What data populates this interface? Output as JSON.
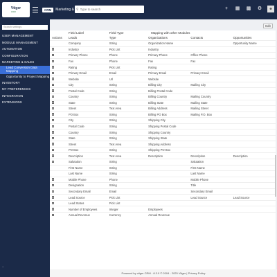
{
  "header": {
    "logo_text": "Vtiger",
    "logo_sub": "CRM",
    "crumb_tag": "CRM",
    "breadcrumb": "Marketing & Sales > Leads",
    "search_placeholder": "Type to search",
    "icons": [
      "add-icon",
      "calendar-icon",
      "chart-icon",
      "settings-icon",
      "user-avatar"
    ]
  },
  "sidebar": {
    "search_placeholder": "Search settings",
    "items": [
      {
        "label": "USER MANAGEMENT",
        "kind": "section"
      },
      {
        "label": "MODULE MANAGEMENT",
        "kind": "section"
      },
      {
        "label": "AUTOMATION",
        "kind": "section"
      },
      {
        "label": "CONFIGURATION",
        "kind": "section"
      },
      {
        "label": "MARKETING & SALES",
        "kind": "section"
      },
      {
        "label": "Lead Conversion Data Mapping",
        "kind": "sub-active"
      },
      {
        "label": "Opportunity to Project Mapping",
        "kind": "sub"
      },
      {
        "label": "INVENTORY",
        "kind": "section"
      },
      {
        "label": "MY PREFERENCES",
        "kind": "section"
      },
      {
        "label": "INTEGRATION",
        "kind": "section"
      },
      {
        "label": "EXTENSIONS",
        "kind": "section"
      }
    ],
    "bottom_label": "..."
  },
  "main": {
    "edit_label": "Edit",
    "group_headers": {
      "field_label": "Field Label",
      "field_type": "Field Type",
      "mapping": "Mapping with other Modules"
    },
    "columns": [
      "Actions",
      "Leads",
      "Type",
      "Organizations",
      "Contacts",
      "Opportunities"
    ],
    "rows": [
      {
        "trash": false,
        "lead": "Company",
        "type": "String",
        "org": "Organization Name",
        "contact": "",
        "opp": "Opportunity Name"
      },
      {
        "trash": true,
        "lead": "Industry",
        "type": "Pick List",
        "org": "Industry",
        "contact": "",
        "opp": ""
      },
      {
        "trash": true,
        "lead": "Primary Phone",
        "type": "Phone",
        "org": "Primary Phone",
        "contact": "Office Phone",
        "opp": ""
      },
      {
        "trash": true,
        "lead": "Fax",
        "type": "Phone",
        "org": "Fax",
        "contact": "Fax",
        "opp": ""
      },
      {
        "trash": true,
        "lead": "Rating",
        "type": "Pick List",
        "org": "Rating",
        "contact": "",
        "opp": ""
      },
      {
        "trash": true,
        "lead": "Primary Email",
        "type": "Email",
        "org": "Primary Email",
        "contact": "Primary Email",
        "opp": ""
      },
      {
        "trash": true,
        "lead": "Website",
        "type": "Url",
        "org": "Website",
        "contact": "",
        "opp": ""
      },
      {
        "trash": true,
        "lead": "City",
        "type": "String",
        "org": "Billing City",
        "contact": "Mailing City",
        "opp": ""
      },
      {
        "trash": true,
        "lead": "Postal Code",
        "type": "String",
        "org": "Billing Postal Code",
        "contact": "",
        "opp": ""
      },
      {
        "trash": true,
        "lead": "Country",
        "type": "String",
        "org": "Billing Country",
        "contact": "Mailing Country",
        "opp": ""
      },
      {
        "trash": true,
        "lead": "State",
        "type": "String",
        "org": "Billing State",
        "contact": "Mailing State",
        "opp": ""
      },
      {
        "trash": true,
        "lead": "Street",
        "type": "Text Area",
        "org": "Billing Address",
        "contact": "Mailing Street",
        "opp": ""
      },
      {
        "trash": true,
        "lead": "PO Box",
        "type": "String",
        "org": "Billing PO Box",
        "contact": "Mailing P.O. Box",
        "opp": ""
      },
      {
        "trash": true,
        "lead": "City",
        "type": "String",
        "org": "Shipping City",
        "contact": "",
        "opp": ""
      },
      {
        "trash": true,
        "lead": "Postal Code",
        "type": "String",
        "org": "Shipping Postal Code",
        "contact": "",
        "opp": ""
      },
      {
        "trash": true,
        "lead": "Country",
        "type": "String",
        "org": "Shipping Country",
        "contact": "",
        "opp": ""
      },
      {
        "trash": true,
        "lead": "State",
        "type": "String",
        "org": "Shipping State",
        "contact": "",
        "opp": ""
      },
      {
        "trash": true,
        "lead": "Street",
        "type": "Text Area",
        "org": "Shipping Address",
        "contact": "",
        "opp": ""
      },
      {
        "trash": true,
        "lead": "PO Box",
        "type": "String",
        "org": "Shipping PO Box",
        "contact": "",
        "opp": ""
      },
      {
        "trash": true,
        "lead": "Description",
        "type": "Text Area",
        "org": "Description",
        "contact": "Description",
        "opp": "Description"
      },
      {
        "trash": true,
        "lead": "Salutation",
        "type": "String",
        "org": "",
        "contact": "Salutation",
        "opp": ""
      },
      {
        "trash": false,
        "lead": "First Name",
        "type": "String",
        "org": "",
        "contact": "First Name",
        "opp": ""
      },
      {
        "trash": false,
        "lead": "Last Name",
        "type": "String",
        "org": "",
        "contact": "Last Name",
        "opp": ""
      },
      {
        "trash": true,
        "lead": "Mobile Phone",
        "type": "Phone",
        "org": "",
        "contact": "Mobile Phone",
        "opp": ""
      },
      {
        "trash": true,
        "lead": "Designation",
        "type": "String",
        "org": "",
        "contact": "Title",
        "opp": ""
      },
      {
        "trash": true,
        "lead": "Secondary Email",
        "type": "Email",
        "org": "",
        "contact": "Secondary Email",
        "opp": ""
      },
      {
        "trash": true,
        "lead": "Lead Source",
        "type": "Pick List",
        "org": "",
        "contact": "Lead Source",
        "opp": "Lead Source"
      },
      {
        "trash": true,
        "lead": "Lead Status",
        "type": "Pick List",
        "org": "",
        "contact": "",
        "opp": ""
      },
      {
        "trash": true,
        "lead": "Number of Employees",
        "type": "Integer",
        "org": "Employees",
        "contact": "",
        "opp": ""
      },
      {
        "trash": true,
        "lead": "Annual Revenue",
        "type": "Currency",
        "org": "Annual Revenue",
        "contact": "",
        "opp": ""
      }
    ]
  },
  "footer": {
    "text": "Powered by vtiger CRM - 8.3.0 © 2004 - 2025  Vtiger | Privacy Policy"
  },
  "colors": {
    "navy": "#1b2a48",
    "active": "#3a6fd8"
  }
}
